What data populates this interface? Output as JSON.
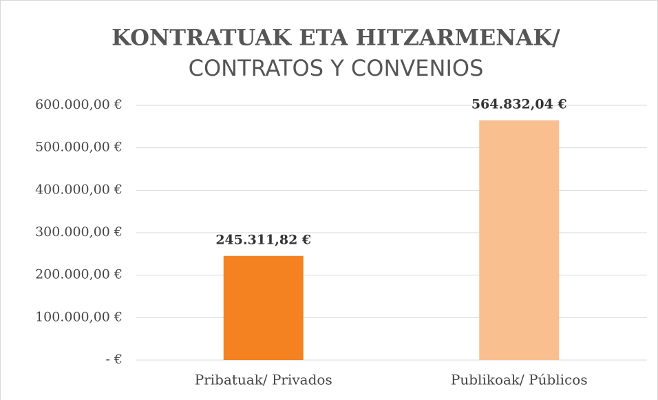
{
  "chart_data": {
    "type": "bar",
    "title": "KONTRATUAK ETA HITZARMENAK/",
    "subtitle": "CONTRATOS Y CONVENIOS",
    "categories": [
      "Pribatuak/ Privados",
      "Publikoak/ Públicos"
    ],
    "values": [
      245311.82,
      564832.04
    ],
    "value_labels": [
      "245.311,82 €",
      "564.832,04 €"
    ],
    "colors": [
      "#f58220",
      "#f9bf8f"
    ],
    "ylim": [
      0,
      600000
    ],
    "yticks": [
      {
        "value": 0,
        "label": "-  €"
      },
      {
        "value": 100000,
        "label": "100.000,00 €"
      },
      {
        "value": 200000,
        "label": "200.000,00 €"
      },
      {
        "value": 300000,
        "label": "300.000,00 €"
      },
      {
        "value": 400000,
        "label": "400.000,00 €"
      },
      {
        "value": 500000,
        "label": "500.000,00 €"
      },
      {
        "value": 600000,
        "label": "600.000,00 €"
      }
    ],
    "grid": true
  }
}
